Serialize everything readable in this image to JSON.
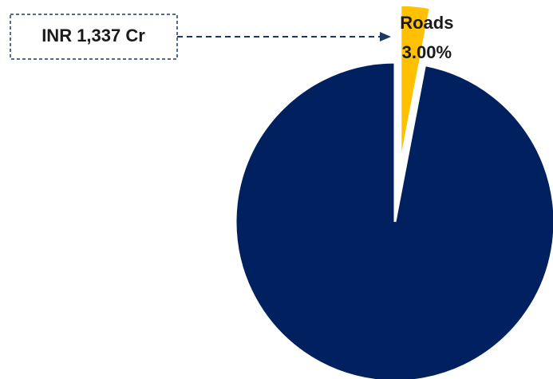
{
  "chart_data": {
    "type": "pie",
    "categories": [
      "Roads",
      null
    ],
    "values": [
      3,
      97
    ],
    "value_labels": [
      "3.00%",
      null
    ],
    "colors": [
      "#FFC000",
      "#002060"
    ],
    "explode": [
      true,
      false
    ],
    "annotation": "INR 1,337 Cr"
  }
}
